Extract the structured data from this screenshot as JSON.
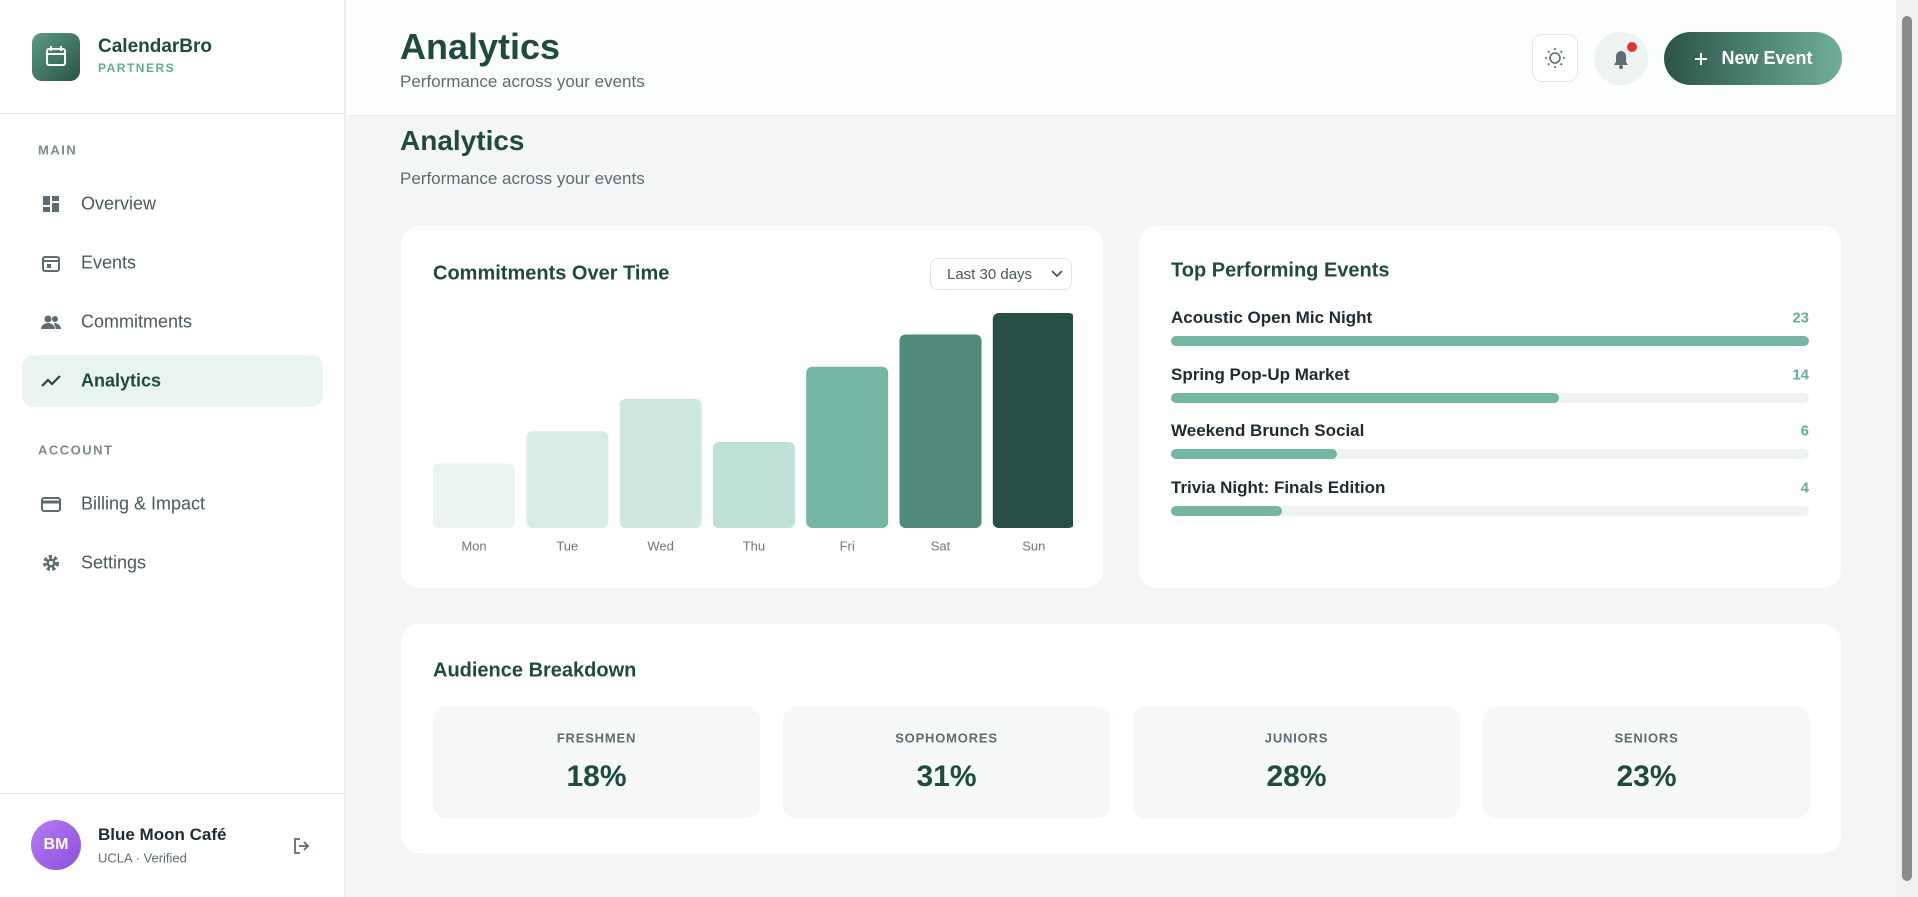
{
  "sidebar": {
    "brand": "CalendarBro",
    "tagline": "PARTNERS",
    "sections": [
      {
        "label": "MAIN",
        "items": [
          "Overview",
          "Events",
          "Commitments",
          "Analytics"
        ]
      },
      {
        "label": "ACCOUNT",
        "items": [
          "Billing & Impact",
          "Settings"
        ]
      }
    ],
    "user": {
      "initials": "BM",
      "name": "Blue Moon Café",
      "status": "UCLA · Verified"
    }
  },
  "header": {
    "title": "Analytics",
    "subtitle": "Performance across your events",
    "button": "New Event"
  },
  "page": {
    "title": "Analytics",
    "subtitle": "Performance across your events"
  },
  "chart_data": {
    "type": "bar",
    "title": "Commitments Over Time",
    "filter": "Last 30 days",
    "categories": [
      "Mon",
      "Tue",
      "Wed",
      "Thu",
      "Fri",
      "Sat",
      "Sun"
    ],
    "values": [
      30,
      45,
      60,
      40,
      75,
      90,
      100
    ],
    "colors": [
      "#eaf3f0",
      "#d8ebe5",
      "#cde6df",
      "#bfe0d7",
      "#74b6a3",
      "#518a7a",
      "#284f45"
    ],
    "ylim": [
      0,
      100
    ]
  },
  "top_events": {
    "title": "Top Performing Events",
    "color": "#74b6a3",
    "items": [
      {
        "name": "Acoustic Open Mic Night",
        "value": 23
      },
      {
        "name": "Spring Pop-Up Market",
        "value": 14
      },
      {
        "name": "Weekend Brunch Social",
        "value": 6
      },
      {
        "name": "Trivia Night: Finals Edition",
        "value": 4
      }
    ]
  },
  "audience": {
    "title": "Audience Breakdown",
    "groups": [
      {
        "label": "FRESHMEN",
        "value": "18%"
      },
      {
        "label": "SOPHOMORES",
        "value": "31%"
      },
      {
        "label": "JUNIORS",
        "value": "28%"
      },
      {
        "label": "SENIORS",
        "value": "23%"
      }
    ]
  }
}
